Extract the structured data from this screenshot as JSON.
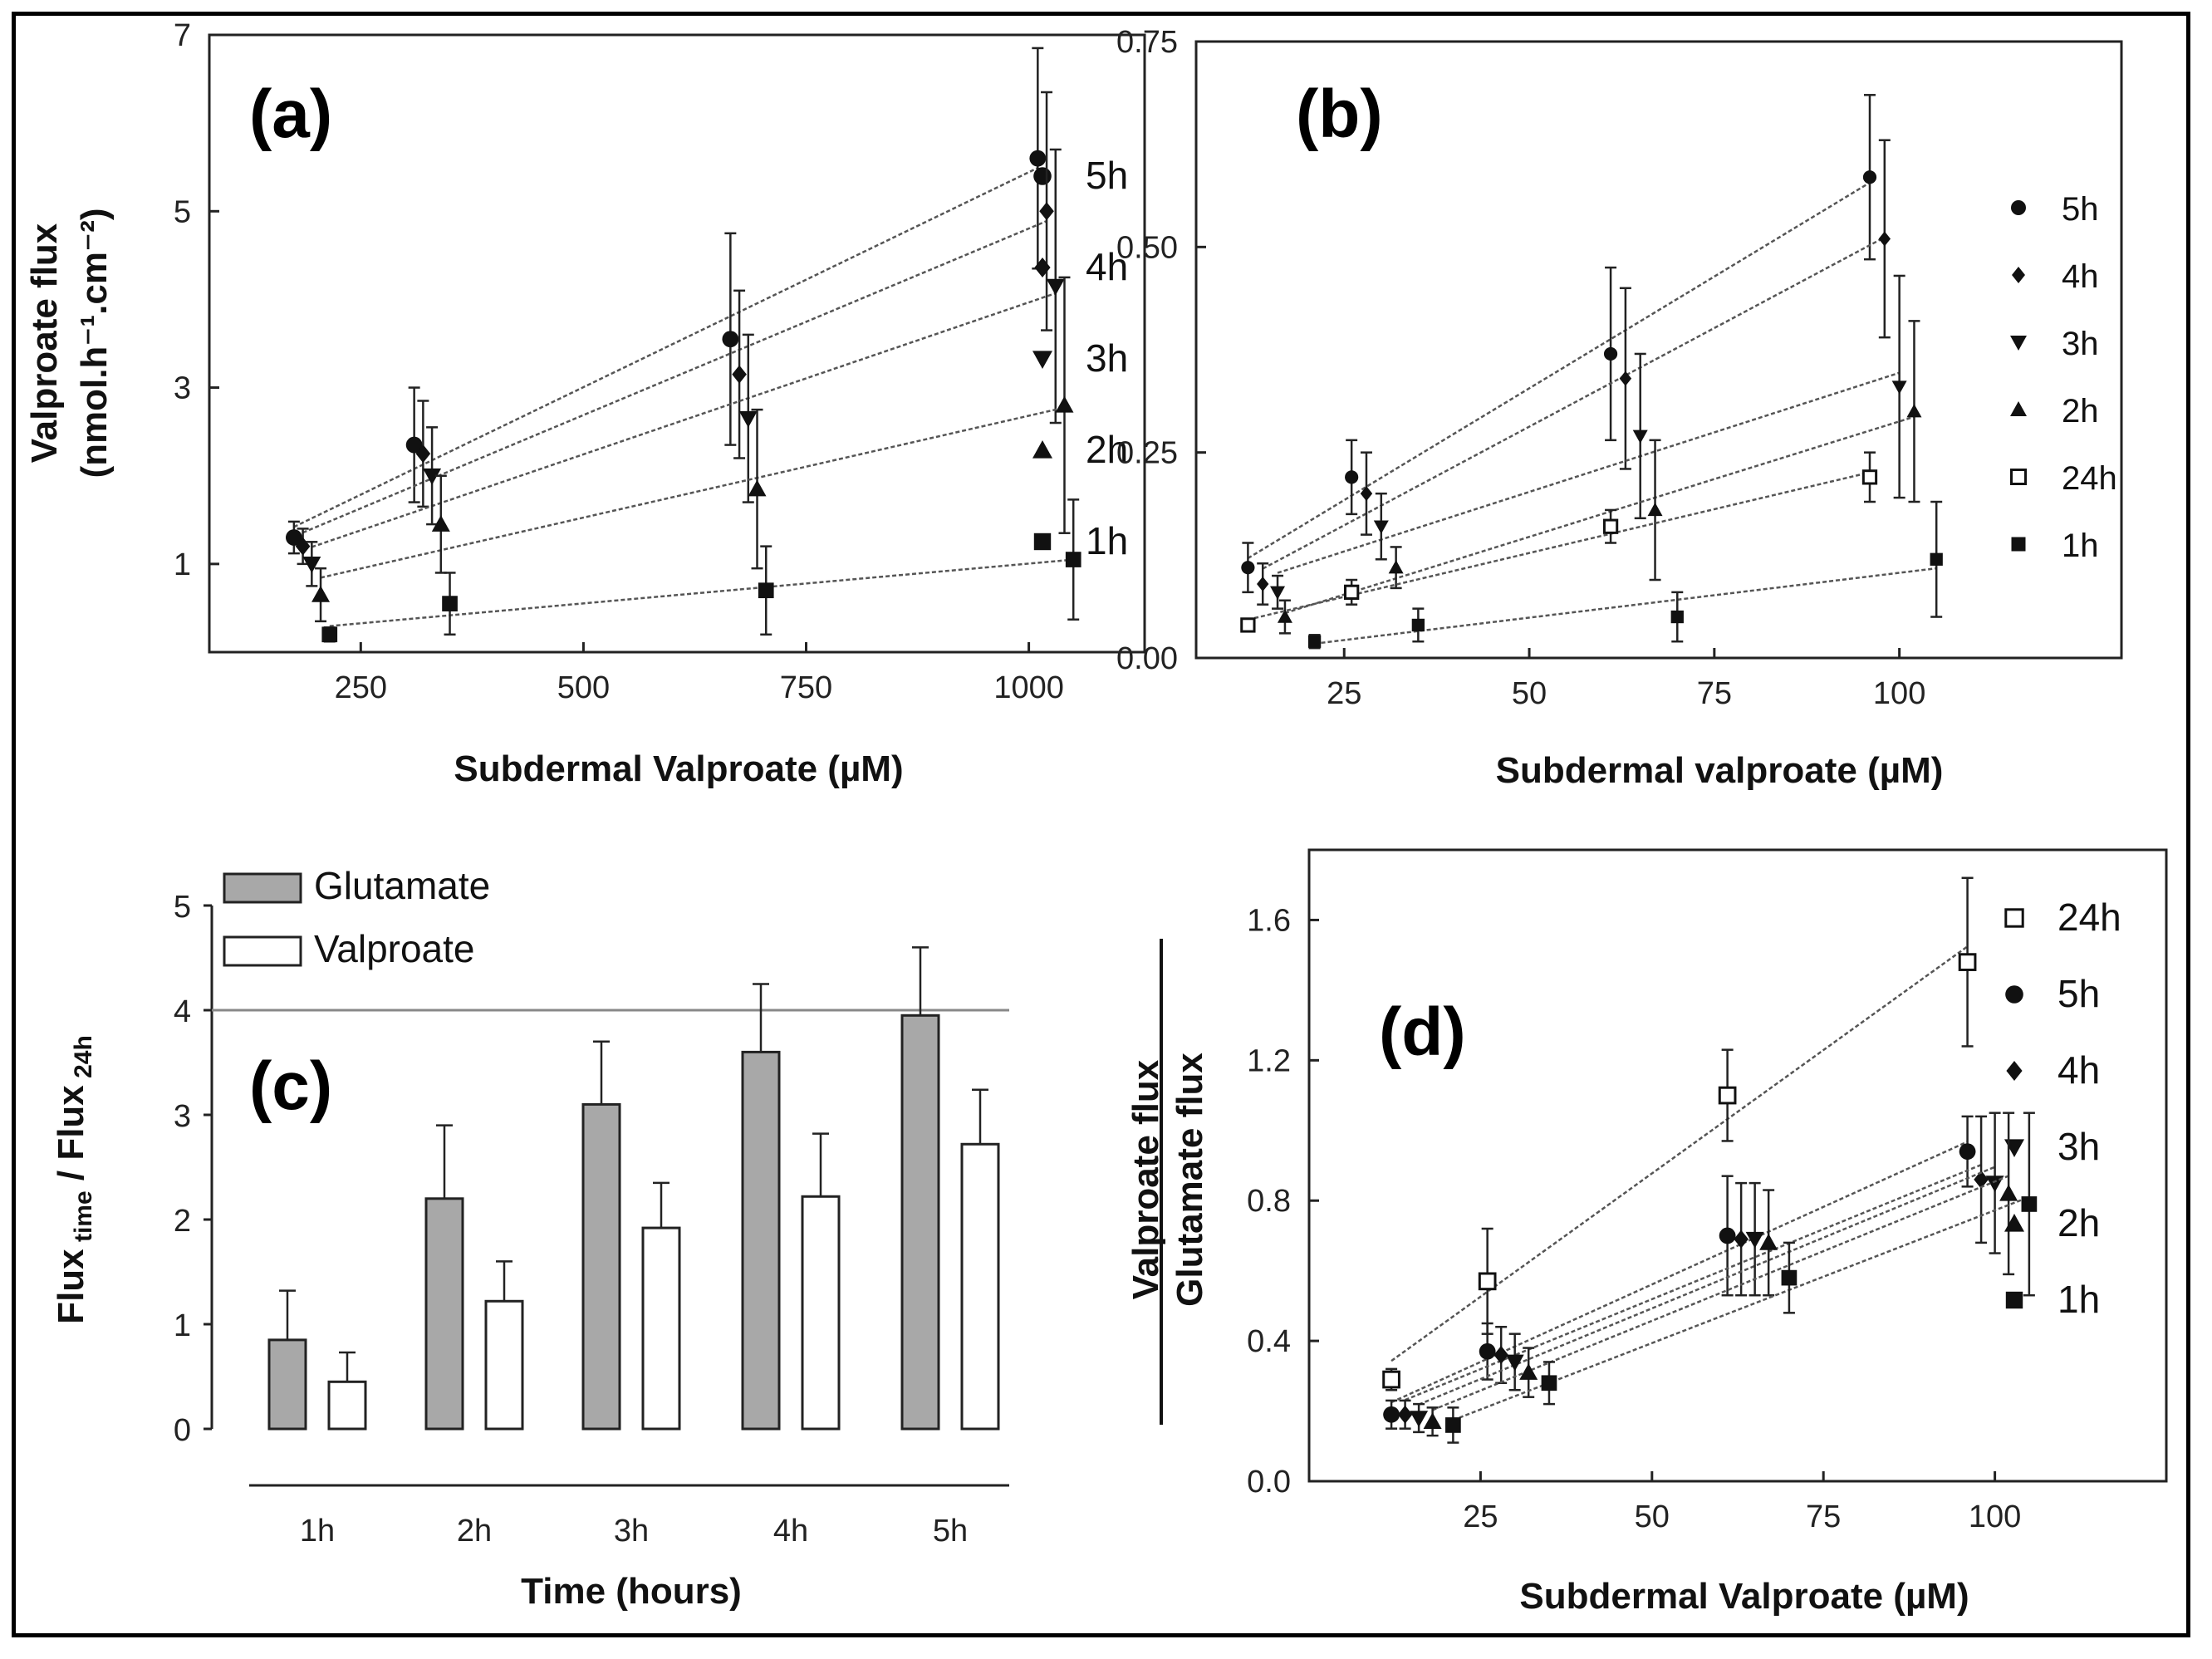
{
  "chart_data": [
    {
      "id": "a",
      "type": "scatter",
      "panel_label": "(a)",
      "xlabel": "Subdermal Valproate (µM)",
      "ylabel": [
        "Valproate flux",
        "(nmol.h⁻¹.cm⁻²)"
      ],
      "xlim": [
        80,
        1130
      ],
      "ylim": [
        0,
        7
      ],
      "xticks": [
        250,
        500,
        750,
        1000
      ],
      "yticks": [
        1,
        3,
        5,
        7
      ],
      "series": [
        {
          "name": "5h",
          "marker": "circle",
          "points": [
            {
              "x": 175,
              "y": 1.3,
              "err": 0.18
            },
            {
              "x": 310,
              "y": 2.35,
              "err": 0.65
            },
            {
              "x": 665,
              "y": 3.55,
              "err": 1.2
            },
            {
              "x": 1010,
              "y": 5.6,
              "err": 1.25
            }
          ]
        },
        {
          "name": "4h",
          "marker": "diamond",
          "points": [
            {
              "x": 185,
              "y": 1.2,
              "err": 0.2
            },
            {
              "x": 320,
              "y": 2.25,
              "err": 0.6
            },
            {
              "x": 675,
              "y": 3.15,
              "err": 0.95
            },
            {
              "x": 1020,
              "y": 5.0,
              "err": 1.35
            }
          ]
        },
        {
          "name": "3h",
          "marker": "triangle-down",
          "points": [
            {
              "x": 195,
              "y": 1.0,
              "err": 0.25
            },
            {
              "x": 330,
              "y": 2.0,
              "err": 0.55
            },
            {
              "x": 685,
              "y": 2.65,
              "err": 0.95
            },
            {
              "x": 1030,
              "y": 4.15,
              "err": 1.55
            }
          ]
        },
        {
          "name": "2h",
          "marker": "triangle-up",
          "points": [
            {
              "x": 205,
              "y": 0.65,
              "err": 0.3
            },
            {
              "x": 340,
              "y": 1.45,
              "err": 0.55
            },
            {
              "x": 695,
              "y": 1.85,
              "err": 0.9
            },
            {
              "x": 1040,
              "y": 2.8,
              "err": 1.45
            }
          ]
        },
        {
          "name": "1h",
          "marker": "square",
          "points": [
            {
              "x": 215,
              "y": 0.2,
              "err": 0.08
            },
            {
              "x": 350,
              "y": 0.55,
              "err": 0.35
            },
            {
              "x": 705,
              "y": 0.7,
              "err": 0.5
            },
            {
              "x": 1050,
              "y": 1.05,
              "err": 0.68
            }
          ]
        }
      ]
    },
    {
      "id": "b",
      "type": "scatter",
      "panel_label": "(b)",
      "xlabel": "Subdermal valproate (µM)",
      "ylabel": [],
      "xlim": [
        5,
        130
      ],
      "ylim": [
        0,
        0.75
      ],
      "xticks": [
        25,
        50,
        75,
        100
      ],
      "yticks": [
        0.0,
        0.25,
        0.5,
        0.75
      ],
      "ytick_labels": [
        "0.00",
        "0.25",
        "0.50",
        "0.75"
      ],
      "series": [
        {
          "name": "5h",
          "marker": "circle",
          "points": [
            {
              "x": 12,
              "y": 0.11,
              "err": 0.03
            },
            {
              "x": 26,
              "y": 0.22,
              "err": 0.045
            },
            {
              "x": 61,
              "y": 0.37,
              "err": 0.105
            },
            {
              "x": 96,
              "y": 0.585,
              "err": 0.1
            }
          ]
        },
        {
          "name": "4h",
          "marker": "diamond",
          "points": [
            {
              "x": 14,
              "y": 0.09,
              "err": 0.025
            },
            {
              "x": 28,
              "y": 0.2,
              "err": 0.05
            },
            {
              "x": 63,
              "y": 0.34,
              "err": 0.11
            },
            {
              "x": 98,
              "y": 0.51,
              "err": 0.12
            }
          ]
        },
        {
          "name": "3h",
          "marker": "triangle-down",
          "points": [
            {
              "x": 16,
              "y": 0.08,
              "err": 0.02
            },
            {
              "x": 30,
              "y": 0.16,
              "err": 0.04
            },
            {
              "x": 65,
              "y": 0.27,
              "err": 0.1
            },
            {
              "x": 100,
              "y": 0.33,
              "err": 0.135
            }
          ]
        },
        {
          "name": "2h",
          "marker": "triangle-up",
          "points": [
            {
              "x": 17,
              "y": 0.05,
              "err": 0.02
            },
            {
              "x": 32,
              "y": 0.11,
              "err": 0.025
            },
            {
              "x": 67,
              "y": 0.18,
              "err": 0.085
            },
            {
              "x": 102,
              "y": 0.3,
              "err": 0.11
            }
          ]
        },
        {
          "name": "24h",
          "marker": "open-square",
          "points": [
            {
              "x": 12,
              "y": 0.04,
              "err": 0.006
            },
            {
              "x": 26,
              "y": 0.08,
              "err": 0.015
            },
            {
              "x": 61,
              "y": 0.16,
              "err": 0.02
            },
            {
              "x": 96,
              "y": 0.22,
              "err": 0.03
            }
          ]
        },
        {
          "name": "1h",
          "marker": "square",
          "points": [
            {
              "x": 21,
              "y": 0.02,
              "err": 0.008
            },
            {
              "x": 35,
              "y": 0.04,
              "err": 0.02
            },
            {
              "x": 70,
              "y": 0.05,
              "err": 0.03
            },
            {
              "x": 105,
              "y": 0.12,
              "err": 0.07
            }
          ]
        }
      ]
    },
    {
      "id": "c",
      "type": "bar",
      "panel_label": "(c)",
      "xlabel": "Time (hours)",
      "ylabel": "Flux",
      "ylabel_sub1": "time",
      "ylabel_mid": " / Flux",
      "ylabel_sub2": "24h",
      "categories": [
        "1h",
        "2h",
        "3h",
        "4h",
        "5h"
      ],
      "ylim": [
        0,
        5
      ],
      "yticks": [
        0,
        1,
        2,
        3,
        4,
        5
      ],
      "reference_line": 4,
      "series": [
        {
          "name": "Glutamate",
          "color": "#a8a8a8",
          "values": [
            0.85,
            2.2,
            3.1,
            3.6,
            3.95
          ],
          "errors": [
            0.47,
            0.7,
            0.6,
            0.65,
            0.65
          ]
        },
        {
          "name": "Valproate",
          "color": "#ffffff",
          "values": [
            0.45,
            1.22,
            1.92,
            2.22,
            2.72
          ],
          "errors": [
            0.28,
            0.38,
            0.43,
            0.6,
            0.52
          ]
        }
      ]
    },
    {
      "id": "d",
      "type": "scatter",
      "panel_label": "(d)",
      "xlabel": "Subdermal Valproate (µM)",
      "ylabel_num": "Valproate flux",
      "ylabel_den": "Glutamate flux",
      "xlim": [
        0,
        125
      ],
      "ylim": [
        0,
        1.8
      ],
      "xticks": [
        25,
        50,
        75,
        100
      ],
      "yticks": [
        0.0,
        0.4,
        0.8,
        1.2,
        1.6
      ],
      "ytick_labels": [
        "0.0",
        "0.4",
        "0.8",
        "1.2",
        "1.6"
      ],
      "series": [
        {
          "name": "24h",
          "marker": "open-square",
          "points": [
            {
              "x": 12,
              "y": 0.29,
              "err": 0.03
            },
            {
              "x": 26,
              "y": 0.57,
              "err": 0.15
            },
            {
              "x": 61,
              "y": 1.1,
              "err": 0.13
            },
            {
              "x": 96,
              "y": 1.48,
              "err": 0.24
            }
          ]
        },
        {
          "name": "5h",
          "marker": "circle",
          "points": [
            {
              "x": 12,
              "y": 0.19,
              "err": 0.04
            },
            {
              "x": 26,
              "y": 0.37,
              "err": 0.08
            },
            {
              "x": 61,
              "y": 0.7,
              "err": 0.17
            },
            {
              "x": 96,
              "y": 0.94,
              "err": 0.1
            }
          ]
        },
        {
          "name": "4h",
          "marker": "diamond",
          "points": [
            {
              "x": 14,
              "y": 0.19,
              "err": 0.04
            },
            {
              "x": 28,
              "y": 0.36,
              "err": 0.08
            },
            {
              "x": 63,
              "y": 0.69,
              "err": 0.16
            },
            {
              "x": 98,
              "y": 0.86,
              "err": 0.18
            }
          ]
        },
        {
          "name": "3h",
          "marker": "triangle-down",
          "points": [
            {
              "x": 16,
              "y": 0.18,
              "err": 0.04
            },
            {
              "x": 30,
              "y": 0.34,
              "err": 0.08
            },
            {
              "x": 65,
              "y": 0.69,
              "err": 0.16
            },
            {
              "x": 100,
              "y": 0.85,
              "err": 0.2
            }
          ]
        },
        {
          "name": "2h",
          "marker": "triangle-up",
          "points": [
            {
              "x": 18,
              "y": 0.17,
              "err": 0.04
            },
            {
              "x": 32,
              "y": 0.31,
              "err": 0.07
            },
            {
              "x": 67,
              "y": 0.68,
              "err": 0.15
            },
            {
              "x": 102,
              "y": 0.82,
              "err": 0.23
            }
          ]
        },
        {
          "name": "1h",
          "marker": "square",
          "points": [
            {
              "x": 21,
              "y": 0.16,
              "err": 0.05
            },
            {
              "x": 35,
              "y": 0.28,
              "err": 0.06
            },
            {
              "x": 70,
              "y": 0.58,
              "err": 0.1
            },
            {
              "x": 105,
              "y": 0.79,
              "err": 0.26
            }
          ]
        }
      ]
    }
  ]
}
